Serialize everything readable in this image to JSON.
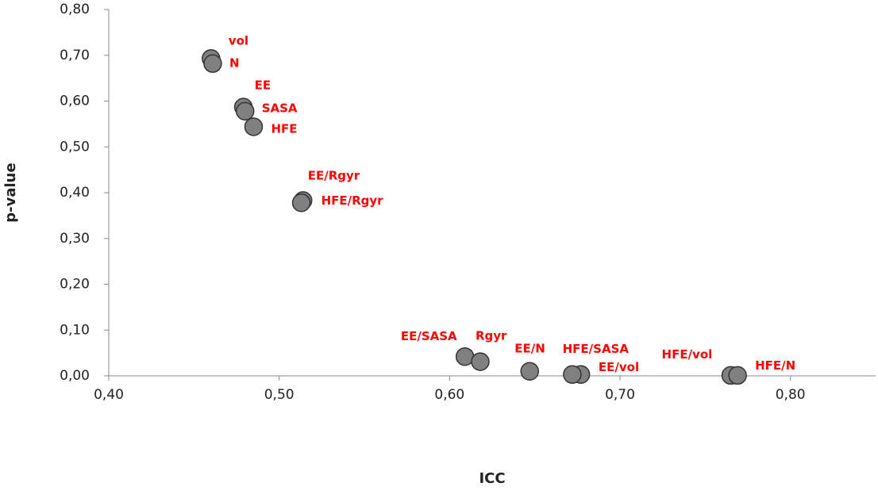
{
  "chart_data": {
    "type": "scatter",
    "x_label": "ICC",
    "y_label": "p-value",
    "series": [
      {
        "color": "#808080",
        "x": [
          0.46,
          0.461,
          0.479,
          0.48,
          0.485,
          0.514,
          0.513,
          0.609,
          0.618,
          0.647,
          0.677,
          0.672,
          0.765,
          0.769
        ],
        "values": [
          0.693,
          0.682,
          0.587,
          0.578,
          0.544,
          0.383,
          0.378,
          0.042,
          0.031,
          0.01,
          0.003,
          0.003,
          0.001,
          0.001
        ],
        "point_labels": [
          "vol",
          "N",
          "EE",
          "SASA",
          "HFE",
          "EE/Rgyr",
          "HFE/Rgyr",
          "EE/SASA",
          "Rgyr",
          "EE/N",
          "HFE/SASA",
          "EE/vol",
          "HFE/vol",
          "HFE/N"
        ]
      }
    ],
    "xlim": [
      0.4,
      0.85
    ],
    "xticks": [
      {
        "value": 0.4,
        "label": "0,40"
      },
      {
        "value": 0.5,
        "label": "0,50"
      },
      {
        "value": 0.6,
        "label": "0,60"
      },
      {
        "value": 0.7,
        "label": "0,70"
      },
      {
        "value": 0.8,
        "label": "0,80"
      }
    ],
    "ylim": [
      0,
      0.8
    ],
    "yticks": [
      {
        "value": 0,
        "label": "0,00"
      },
      {
        "value": 0.1,
        "label": "0,10"
      },
      {
        "value": 0.2,
        "label": "0,20"
      },
      {
        "value": 0.3,
        "label": "0,30"
      },
      {
        "value": 0.4,
        "label": "0,40"
      },
      {
        "value": 0.5,
        "label": "0,50"
      },
      {
        "value": 0.6,
        "label": "0,60"
      },
      {
        "value": 0.7,
        "label": "0,70"
      },
      {
        "value": 0.8,
        "label": "0,80"
      }
    ]
  }
}
